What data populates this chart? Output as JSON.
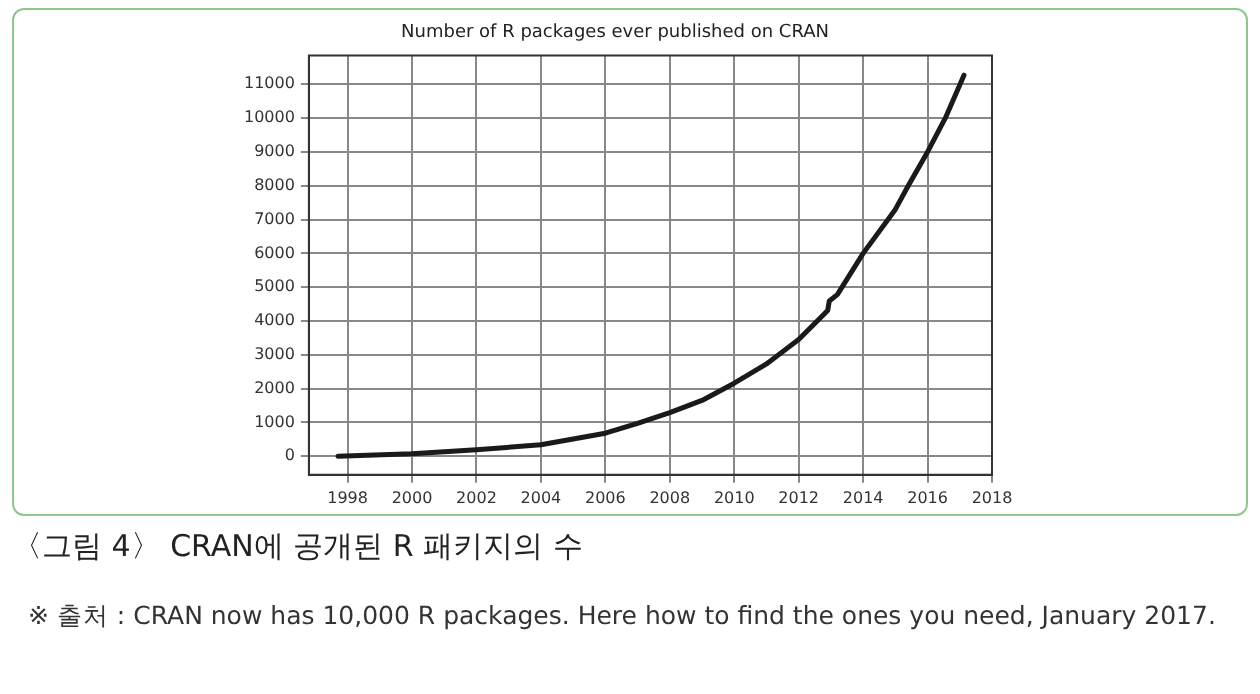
{
  "chart_data": {
    "type": "line",
    "title": "Number of R packages ever published on CRAN",
    "x": [
      1997.7,
      2000,
      2002,
      2004,
      2006,
      2007,
      2008,
      2009,
      2010,
      2011,
      2012,
      2012.7,
      2012.9,
      2012.95,
      2013.2,
      2014,
      2015,
      2015.4,
      2016,
      2016.55,
      2017.13
    ],
    "series": [
      {
        "color": "#1a1a1a",
        "values": [
          0,
          75,
          190,
          340,
          680,
          970,
          1290,
          1650,
          2160,
          2730,
          3450,
          4120,
          4310,
          4590,
          4780,
          6000,
          7300,
          8000,
          9000,
          10000,
          11270
        ]
      }
    ],
    "xlim": [
      1996.8,
      2018
    ],
    "xticks": [
      1998,
      2000,
      2002,
      2004,
      2006,
      2008,
      2010,
      2012,
      2014,
      2016,
      2018
    ],
    "ylim": [
      -550,
      11850
    ],
    "yticks": [
      0,
      1000,
      2000,
      3000,
      4000,
      5000,
      6000,
      7000,
      8000,
      9000,
      10000,
      11000
    ],
    "grid": true,
    "marker": "none",
    "line_style": "solid",
    "annotations": [
      "〈그림 4〉 CRAN에 공개된 R 패키지의 수",
      "※ 출처 : CRAN now has 10,000 R packages. Here how to find the ones you need, January 2017."
    ]
  }
}
